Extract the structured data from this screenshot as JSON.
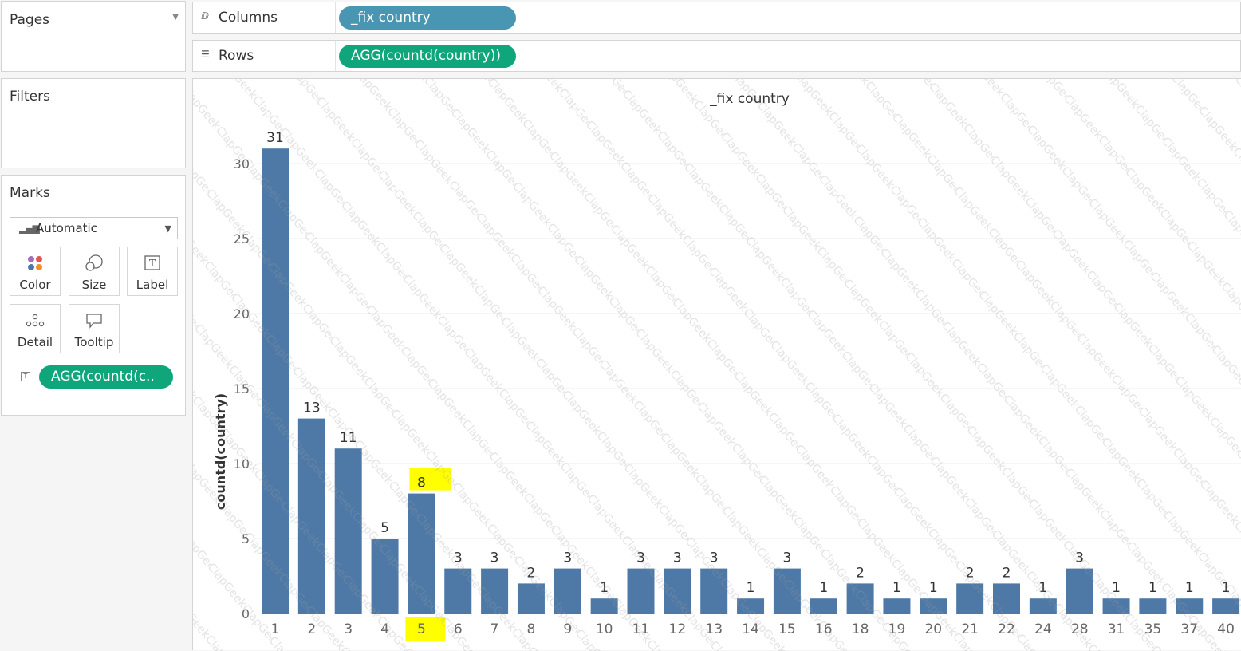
{
  "pages": {
    "title": "Pages"
  },
  "filters": {
    "title": "Filters"
  },
  "marks": {
    "title": "Marks",
    "mark_type": "Automatic",
    "buttons": [
      {
        "id": "color",
        "label": "Color",
        "icon": "color-dots-icon"
      },
      {
        "id": "size",
        "label": "Size",
        "icon": "size-circles-icon"
      },
      {
        "id": "label",
        "label": "Label",
        "icon": "text-label-icon"
      },
      {
        "id": "detail",
        "label": "Detail",
        "icon": "detail-dots-icon"
      },
      {
        "id": "tooltip",
        "label": "Tooltip",
        "icon": "speech-bubble-icon"
      }
    ],
    "field_pill": "AGG(countd(c.."
  },
  "shelves": {
    "columns": {
      "label": "Columns",
      "pill": "_fix country"
    },
    "rows": {
      "label": "Rows",
      "pill": "AGG(countd(country))"
    }
  },
  "colors": {
    "bar": "#4e79a7",
    "dimension_pill": "#4996b2",
    "measure_pill": "#10a67c",
    "highlight": "#ffff00"
  },
  "chart_data": {
    "type": "bar",
    "title": "_fix country",
    "xlabel": "",
    "ylabel": "countd(country)",
    "categories": [
      "1",
      "2",
      "3",
      "4",
      "5",
      "6",
      "7",
      "8",
      "9",
      "10",
      "11",
      "12",
      "13",
      "14",
      "15",
      "16",
      "18",
      "19",
      "20",
      "21",
      "22",
      "24",
      "28",
      "31",
      "35",
      "37",
      "40"
    ],
    "values": [
      31,
      13,
      11,
      5,
      8,
      3,
      3,
      2,
      3,
      1,
      3,
      3,
      3,
      1,
      3,
      1,
      2,
      1,
      1,
      2,
      2,
      1,
      3,
      1,
      1,
      1,
      1
    ],
    "yticks": [
      0,
      5,
      10,
      15,
      20,
      25,
      30
    ],
    "ylim": [
      0,
      32
    ],
    "grid": true,
    "highlighted_category": "5"
  },
  "watermark": {
    "text": "ClapGeek"
  }
}
